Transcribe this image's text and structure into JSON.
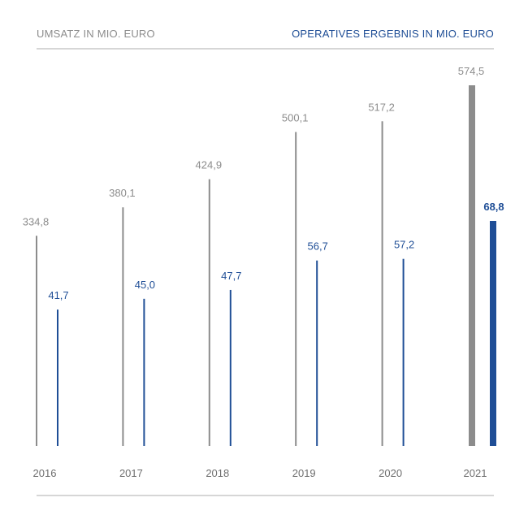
{
  "chart_data": {
    "type": "bar",
    "categories": [
      "2016",
      "2017",
      "2018",
      "2019",
      "2020",
      "2021"
    ],
    "series": [
      {
        "name": "UMSATZ IN MIO. EURO",
        "values": [
          334.8,
          380.1,
          424.9,
          500.1,
          517.2,
          574.5
        ],
        "labels": [
          "334,8",
          "380,1",
          "424,9",
          "500,1",
          "517,2",
          "574,5"
        ],
        "color": "#8c8c8c"
      },
      {
        "name": "OPERATIVES ERGEBNIS IN MIO. EURO",
        "values": [
          41.7,
          45.0,
          47.7,
          56.7,
          57.2,
          68.8
        ],
        "labels": [
          "41,7",
          "45,0",
          "47,7",
          "56,7",
          "57,2",
          "68,8"
        ],
        "color": "#1f4e96"
      }
    ],
    "highlight_category": "2021",
    "legend_position": "top",
    "grid": false
  }
}
